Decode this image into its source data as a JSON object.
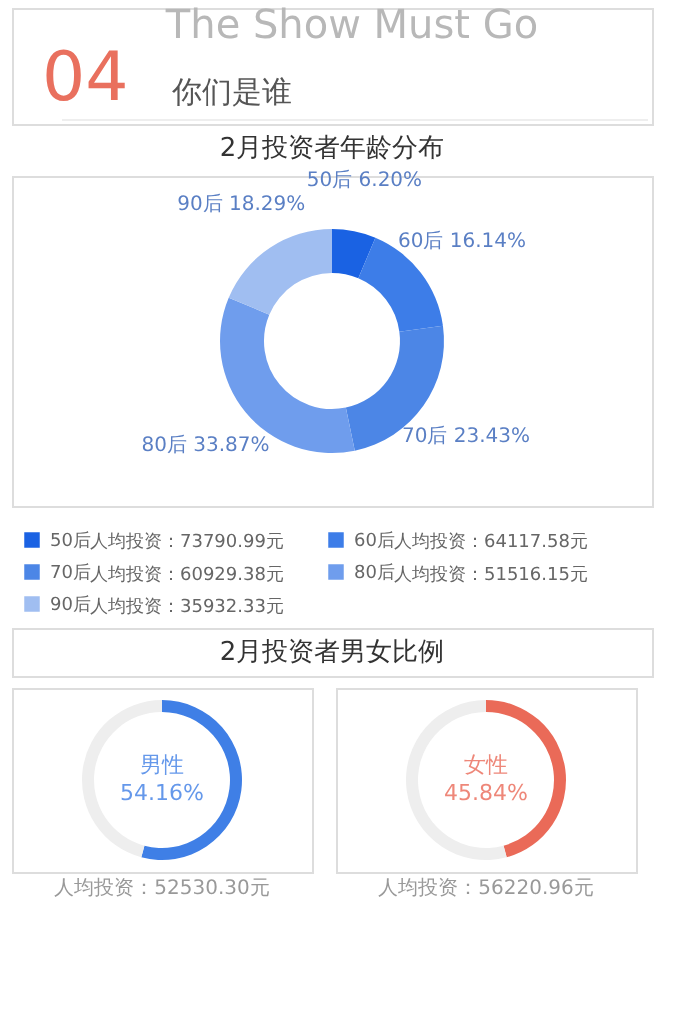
{
  "chart_data": [
    {
      "type": "other",
      "annotations": [
        "The Show Must Go",
        "04",
        "你们是谁"
      ]
    },
    {
      "type": "donut",
      "title": "2月投资者年龄分布",
      "categories": [
        "50后",
        "60后",
        "70后",
        "80后",
        "90后"
      ],
      "values": [
        6.2,
        16.14,
        23.43,
        33.87,
        18.29
      ],
      "value_labels": [
        "6.20%",
        "16.14%",
        "23.43%",
        "33.87%",
        "18.29%"
      ],
      "colors": [
        "#1a62e3",
        "#3d7de8",
        "#4c86e6",
        "#6f9ded",
        "#a0bef1"
      ],
      "legend": "bottom",
      "annotations": [
        "人均投资：73790.99元",
        "人均投资：64117.58元",
        "人均投资：60929.38元",
        "人均投资：51516.15元",
        "人均投资：35932.33元"
      ]
    },
    {
      "type": "other",
      "title": "2月投资者男女比例"
    },
    {
      "type": "donut",
      "categories": [
        "男性",
        null
      ],
      "values": [
        54.16,
        45.84
      ],
      "value_labels": [
        "54.16%",
        null
      ],
      "colors": [
        "#3f7fe6",
        "#eeeeee"
      ],
      "annotations": [
        "人均投资：52530.30元"
      ]
    },
    {
      "type": "donut",
      "categories": [
        "女性",
        null
      ],
      "values": [
        45.84,
        54.16
      ],
      "value_labels": [
        "45.84%",
        null
      ],
      "colors": [
        "#ea6a58",
        "#eeeeee"
      ],
      "annotations": [
        "人均投资：56220.96元"
      ]
    }
  ]
}
